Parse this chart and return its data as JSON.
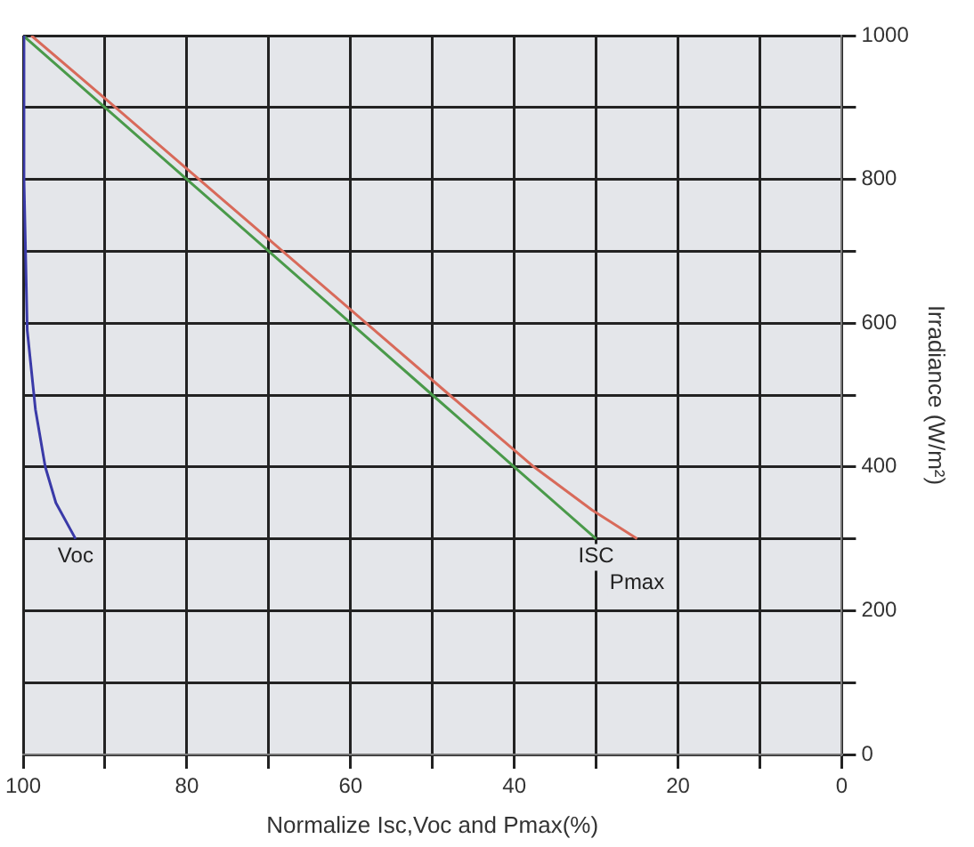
{
  "chart_data": {
    "type": "line",
    "xlabel": "Normalize Isc,Voc and Pmax(%)",
    "ylabel": "Irradiance (W/m²)",
    "xlim": [
      100,
      0
    ],
    "xticks": [
      100,
      {
        "value": 90,
        "label": null
      },
      80,
      {
        "value": 70,
        "label": null
      },
      60,
      {
        "value": 50,
        "label": null
      },
      40,
      {
        "value": 30,
        "label": null
      },
      20,
      {
        "value": 10,
        "label": null
      },
      0
    ],
    "ylim": [
      0,
      1000
    ],
    "yticks": [
      0,
      {
        "value": 100,
        "label": null
      },
      200,
      {
        "value": 300,
        "label": null
      },
      400,
      {
        "value": 500,
        "label": null
      },
      600,
      {
        "value": 700,
        "label": null
      },
      800,
      {
        "value": 900,
        "label": null
      },
      1000
    ],
    "grid": true,
    "legend": false,
    "marker": "none",
    "line_style": "solid",
    "series": [
      {
        "color": "#3a3aa8",
        "x": [
          100,
          99.9,
          99.5,
          98.5,
          97.3,
          96,
          93.6
        ],
        "values": [
          1000,
          800,
          590,
          480,
          400,
          350,
          300
        ]
      },
      {
        "color": "#4a9a4a",
        "x": [
          100,
          90,
          80,
          70,
          60,
          50,
          40,
          30
        ],
        "values": [
          1000,
          900,
          800,
          700,
          600,
          500,
          400,
          300
        ]
      },
      {
        "color": "#d86a5a",
        "x": [
          99,
          88.7,
          78.5,
          68.3,
          58.1,
          47.9,
          37.6,
          30.5,
          25
        ],
        "values": [
          1000,
          900,
          800,
          700,
          600,
          500,
          400,
          340,
          300
        ]
      }
    ],
    "annotations": [
      {
        "text": "Voc",
        "x": 93.6,
        "y": 300
      },
      {
        "text": "ISC",
        "x": 30,
        "y": 300
      },
      {
        "text": "Pmax",
        "x": 25,
        "y": 300
      }
    ]
  }
}
